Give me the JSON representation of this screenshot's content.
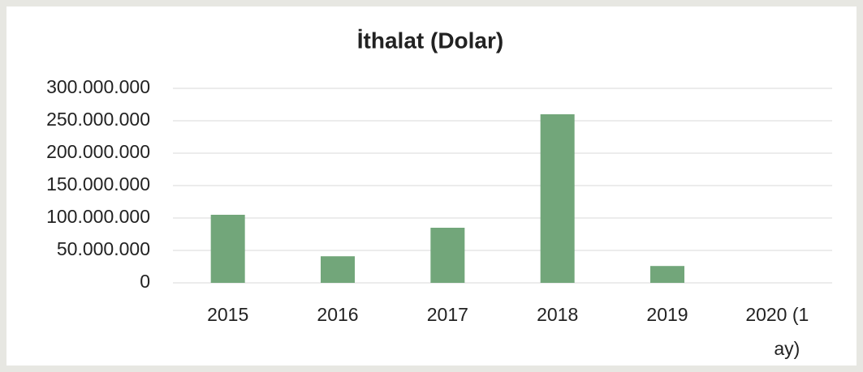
{
  "chart_data": {
    "type": "bar",
    "title": "İthalat (Dolar)",
    "categories": [
      "2015",
      "2016",
      "2017",
      "2018",
      "2019",
      "2020 (1 ay)"
    ],
    "values": [
      105000000,
      41000000,
      85000000,
      260000000,
      26000000,
      0
    ],
    "color": "#72a67a",
    "ylim": [
      0,
      300000000
    ],
    "yticks": [
      0,
      {
        "value": 50000000,
        "label": "50.000.000"
      },
      {
        "value": 100000000,
        "label": "100.000.000"
      },
      {
        "value": 150000000,
        "label": "150.000.000"
      },
      {
        "value": 200000000,
        "label": "200.000.000"
      },
      {
        "value": 250000000,
        "label": "250.000.000"
      },
      {
        "value": 300000000,
        "label": "300.000.000"
      }
    ],
    "grid": true
  }
}
